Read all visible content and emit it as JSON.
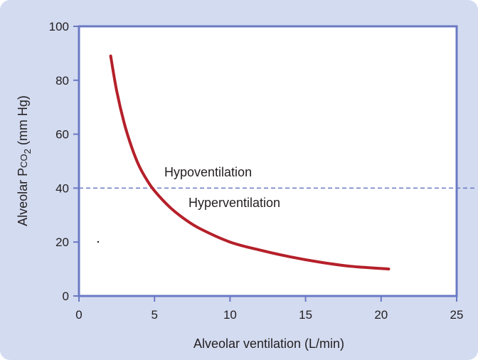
{
  "chart_data": {
    "type": "line",
    "xlabel": "Alveolar ventilation (L/min)",
    "ylabel": {
      "main": "Alveolar P",
      "small": "CO",
      "sub": "2",
      "rest": " (mm Hg)"
    },
    "xlim": [
      0,
      25
    ],
    "ylim": [
      0,
      100
    ],
    "xticks": [
      "0",
      "5",
      "10",
      "15",
      "20",
      "25"
    ],
    "yticks": [
      "0",
      "20",
      "40",
      "60",
      "80",
      "100"
    ],
    "grid": false,
    "reference_line": {
      "y": 40,
      "style": "dashed"
    },
    "annotations": [
      "Hypoventilation",
      "Hyperventilation"
    ],
    "series": [
      {
        "color": "#b5202a",
        "x": [
          2.1,
          2.5,
          3,
          3.5,
          4,
          4.5,
          5,
          6,
          7,
          8,
          10,
          12,
          14,
          16,
          18,
          20.5
        ],
        "y": [
          89,
          76,
          64,
          55,
          48,
          43,
          39,
          33,
          28.5,
          25,
          20,
          17,
          14.5,
          12.5,
          11,
          10
        ]
      }
    ],
    "colors": {
      "axis": "#6a79c4",
      "curve": "#b5202a",
      "dashed": "#6a79c4",
      "background": "#d3dbf0",
      "plot": "#ffffff"
    }
  }
}
